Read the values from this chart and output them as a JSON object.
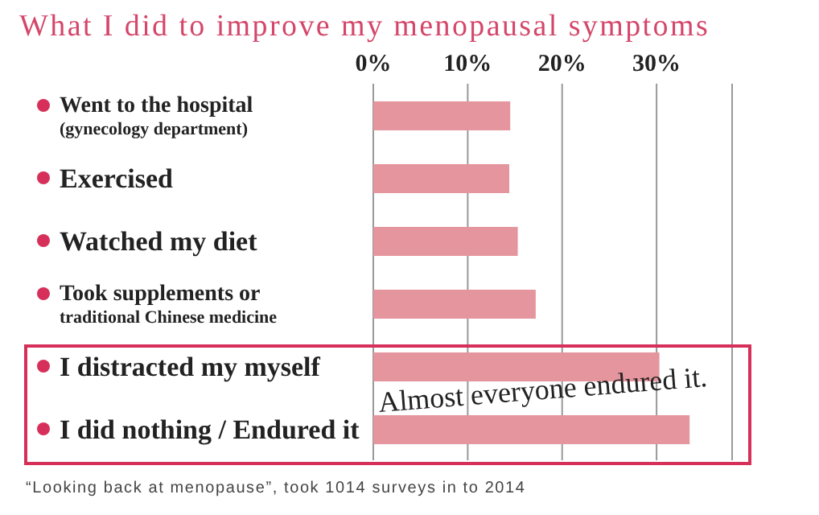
{
  "chart_data": {
    "type": "bar",
    "orientation": "horizontal",
    "title": "What I did to improve my menopausal symptoms",
    "categories": [
      "Went to the hospital\n(gynecology department)",
      "Exercised",
      "Watched my diet",
      "Took supplements or\ntraditional Chinese medicine",
      "I distracted my myself",
      "I did nothing / Endured it"
    ],
    "values": [
      14.5,
      14.4,
      15.3,
      17.2,
      30.3,
      33.5
    ],
    "color": "#e5959d",
    "xlim": [
      0,
      38
    ],
    "xticks": [
      {
        "value": 0,
        "label": "0%"
      },
      {
        "value": 10,
        "label": "10%"
      },
      {
        "value": 20,
        "label": "20%"
      },
      {
        "value": 30,
        "label": "30%"
      }
    ],
    "grid": "x",
    "legend": false,
    "annotations": [
      "Almost everyone endured it.",
      "“Looking back at menopause”, took 1014 surveys in to 2014"
    ]
  }
}
